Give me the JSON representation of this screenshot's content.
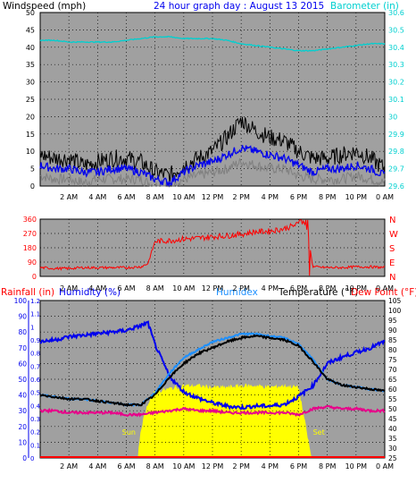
{
  "chart_data": [
    {
      "type": "line",
      "panel": "wind-barometer",
      "title": "24 hour graph day : August 13 2015",
      "ylabel_left": "Windspeed (mph)",
      "ylabel_right": "Barometer (in)",
      "ylim_left": [
        0,
        50
      ],
      "yticks_left": [
        "0",
        "5",
        "10",
        "15",
        "20",
        "25",
        "30",
        "35",
        "40",
        "45",
        "50"
      ],
      "ylim_right": [
        29.6,
        30.6
      ],
      "yticks_right": [
        "29.6",
        "29.7",
        "29.8",
        "29.9",
        "30",
        "30.1",
        "30.2",
        "30.3",
        "30.4",
        "30.5",
        "30.6"
      ],
      "x_tick_labels": [
        "2 AM",
        "4 AM",
        "6 AM",
        "8 AM",
        "10 AM",
        "12 PM",
        "2 PM",
        "4 PM",
        "6 PM",
        "8 PM",
        "10 PM",
        "0 AM"
      ],
      "xlim_hours": [
        0,
        24
      ],
      "grid": true,
      "colors": {
        "wind_gust": "#000000",
        "wind_avg": "#0000ee",
        "wind_low": "#808080",
        "barometer": "#00d0d0"
      },
      "series": [
        {
          "key": "barometer",
          "x_hours": [
            0,
            1,
            2,
            3,
            4,
            5,
            6,
            7,
            8,
            9,
            10,
            11,
            12,
            13,
            14,
            15,
            16,
            17,
            18,
            19,
            20,
            21,
            22,
            23,
            24
          ],
          "values": [
            30.44,
            30.44,
            30.43,
            30.43,
            30.43,
            30.43,
            30.44,
            30.45,
            30.46,
            30.46,
            30.45,
            30.45,
            30.45,
            30.44,
            30.42,
            30.41,
            30.4,
            30.39,
            30.38,
            30.38,
            30.39,
            30.4,
            30.41,
            30.42,
            30.42
          ]
        },
        {
          "key": "wind_gust",
          "x_hours": [
            0,
            1,
            2,
            3,
            4,
            5,
            6,
            7,
            8,
            9,
            10,
            11,
            12,
            13,
            14,
            15,
            16,
            17,
            18,
            19,
            20,
            21,
            22,
            23,
            24
          ],
          "values": [
            9,
            8,
            8,
            6,
            7,
            8,
            8,
            7,
            4,
            3,
            6,
            8,
            10,
            14,
            19,
            16,
            14,
            13,
            10,
            8,
            8,
            9,
            10,
            8,
            5
          ]
        },
        {
          "key": "wind_avg",
          "x_hours": [
            0,
            1,
            2,
            3,
            4,
            5,
            6,
            7,
            8,
            9,
            10,
            11,
            12,
            13,
            14,
            15,
            16,
            17,
            18,
            19,
            20,
            21,
            22,
            23,
            24
          ],
          "values": [
            6,
            5,
            5,
            4,
            4,
            5,
            5,
            4,
            2,
            1,
            4,
            6,
            7,
            9,
            11,
            10,
            9,
            8,
            6,
            4,
            5,
            5,
            6,
            5,
            3
          ]
        },
        {
          "key": "wind_low",
          "x_hours": [
            0,
            1,
            2,
            3,
            4,
            5,
            6,
            7,
            8,
            9,
            10,
            11,
            12,
            13,
            14,
            15,
            16,
            17,
            18,
            19,
            20,
            21,
            22,
            23,
            24
          ],
          "values": [
            3,
            2,
            2,
            1,
            2,
            2,
            2,
            2,
            0,
            0,
            2,
            3,
            4,
            5,
            7,
            6,
            5,
            5,
            3,
            2,
            2,
            2,
            3,
            2,
            1
          ]
        }
      ]
    },
    {
      "type": "scatter",
      "panel": "wind-direction",
      "ylim": [
        0,
        360
      ],
      "yticks_left": [
        "0",
        "90",
        "180",
        "270",
        "360"
      ],
      "yticks_right": [
        "N",
        "E",
        "S",
        "W",
        "N"
      ],
      "x_tick_labels": [
        "2 AM",
        "4 AM",
        "6 AM",
        "8 AM",
        "10 AM",
        "12 PM",
        "2 PM",
        "4 PM",
        "6 PM",
        "8 PM",
        "10 PM",
        "0 AM"
      ],
      "grid": true,
      "colors": {
        "direction": "#ff0000"
      },
      "series": [
        {
          "key": "direction",
          "x_hours": [
            0,
            1,
            2,
            3,
            4,
            5,
            6,
            7,
            7.5,
            8,
            9,
            10,
            11,
            12,
            13,
            14,
            15,
            16,
            17,
            18,
            18.5,
            19,
            20,
            21,
            22,
            23,
            24
          ],
          "values": [
            55,
            50,
            50,
            55,
            55,
            55,
            55,
            60,
            80,
            220,
            225,
            235,
            240,
            250,
            255,
            265,
            280,
            285,
            300,
            330,
            340,
            60,
            55,
            55,
            60,
            60,
            55
          ]
        }
      ]
    },
    {
      "type": "line",
      "panel": "temp-humidity-rain",
      "labels": {
        "rainfall": "Rainfall (in)",
        "humidity": "Humidity (%)",
        "humidex": "Humidex",
        "temperature": "Temperature (°F)",
        "dewpoint": "Dew Point (°F)"
      },
      "ylim_rain": [
        0,
        1.2
      ],
      "yticks_rain": [
        "0",
        "0.1",
        "0.2",
        "0.3",
        "0.4",
        "0.5",
        "0.6",
        "0.7",
        "0.8",
        "0.9",
        "1",
        "1.1",
        "1.2"
      ],
      "ylim_humidity": [
        0,
        100
      ],
      "yticks_humidity": [
        "0",
        "10",
        "20",
        "30",
        "40",
        "50",
        "60",
        "70",
        "80",
        "90",
        "100"
      ],
      "ylim_temp": [
        25,
        105
      ],
      "yticks_temp": [
        "25",
        "30",
        "35",
        "40",
        "45",
        "50",
        "55",
        "60",
        "65",
        "70",
        "75",
        "80",
        "85",
        "90",
        "95",
        "100",
        "105"
      ],
      "x_tick_labels": [
        "2 AM",
        "4 AM",
        "6 AM",
        "8 AM",
        "10 AM",
        "12 PM",
        "2 PM",
        "4 PM",
        "6 PM",
        "8 PM",
        "10 PM",
        "0 AM"
      ],
      "annotations": {
        "sunrise": "Sun",
        "sunset": "Set"
      },
      "grid": true,
      "colors": {
        "temperature": "#000000",
        "humidity": "#0000ee",
        "humidex": "#1e90ff",
        "dewpoint": "#e8008a",
        "sunlight": "#ffff00",
        "rain": "#ff0000"
      },
      "series": [
        {
          "key": "temperature",
          "x_hours": [
            0,
            1,
            2,
            3,
            4,
            5,
            6,
            7,
            8,
            9,
            10,
            11,
            12,
            13,
            14,
            15,
            16,
            17,
            18,
            19,
            20,
            21,
            22,
            23,
            24
          ],
          "values": [
            57,
            56,
            55,
            55,
            54,
            53,
            52,
            52,
            57,
            66,
            73,
            78,
            81,
            84,
            86,
            87,
            86,
            85,
            82,
            74,
            65,
            62,
            61,
            60,
            59
          ]
        },
        {
          "key": "humidex",
          "x_hours": [
            0,
            1,
            2,
            3,
            4,
            5,
            6,
            7,
            8,
            9,
            10,
            11,
            12,
            13,
            14,
            15,
            16,
            17,
            18,
            19,
            20,
            21,
            22,
            23,
            24
          ],
          "values": [
            57,
            56,
            55,
            55,
            54,
            53,
            52,
            52,
            58,
            68,
            76,
            80,
            84,
            86,
            88,
            88,
            87,
            86,
            83,
            75,
            65,
            62,
            61,
            60,
            59
          ]
        },
        {
          "key": "humidity",
          "x_hours": [
            0,
            1,
            2,
            3,
            4,
            5,
            6,
            7,
            7.5,
            8,
            9,
            10,
            11,
            12,
            13,
            14,
            15,
            16,
            17,
            18,
            19,
            20,
            21,
            22,
            23,
            24
          ],
          "values": [
            74,
            75,
            77,
            78,
            79,
            80,
            81,
            84,
            86,
            72,
            52,
            42,
            38,
            35,
            33,
            32,
            33,
            33,
            34,
            39,
            46,
            60,
            64,
            67,
            70,
            74
          ]
        },
        {
          "key": "dewpoint",
          "x_hours": [
            0,
            1,
            2,
            3,
            4,
            5,
            6,
            7,
            8,
            9,
            10,
            11,
            12,
            13,
            14,
            15,
            16,
            17,
            18,
            19,
            20,
            21,
            22,
            23,
            24
          ],
          "values": [
            49,
            49,
            48,
            48,
            48,
            48,
            47,
            47,
            48,
            49,
            50,
            49,
            49,
            48,
            48,
            48,
            48,
            48,
            47,
            50,
            51,
            50,
            50,
            49,
            49
          ]
        },
        {
          "key": "rainfall",
          "x_hours": [
            0,
            24
          ],
          "values": [
            0,
            0
          ]
        },
        {
          "key": "sunlight_pct",
          "x_hours": [
            6.8,
            7,
            7.5,
            8,
            9,
            10,
            11,
            12,
            13,
            14,
            15,
            16,
            17,
            18,
            18.9,
            19
          ],
          "values": [
            0,
            18,
            35,
            42,
            44,
            46,
            46,
            45,
            45,
            46,
            46,
            45,
            46,
            45,
            0,
            0
          ]
        }
      ]
    }
  ]
}
